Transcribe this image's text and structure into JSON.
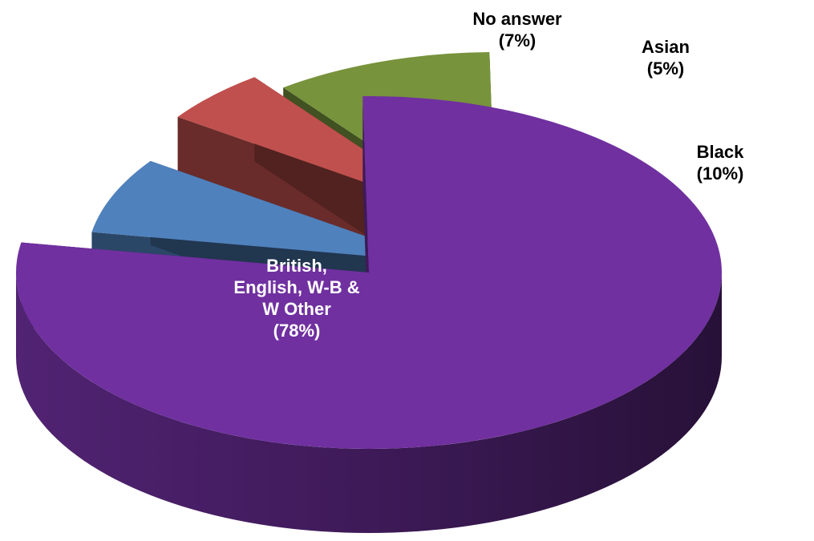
{
  "chart_data": {
    "type": "pie",
    "style": "3d-exploded",
    "slices": [
      {
        "name": "British, English, W-B & W Other",
        "value": 78,
        "label_lines": [
          "British,",
          "English, W-B &",
          "W Other",
          "(78%)"
        ],
        "color": "#7030A0",
        "label_color": "#ffffff"
      },
      {
        "name": "No answer",
        "value": 7,
        "label_lines": [
          "No answer",
          "(7%)"
        ],
        "color": "#4F81BD",
        "label_color": "#000000"
      },
      {
        "name": "Asian",
        "value": 5,
        "label_lines": [
          "Asian",
          "(5%)"
        ],
        "color": "#C0504D",
        "label_color": "#000000"
      },
      {
        "name": "Black",
        "value": 10,
        "label_lines": [
          "Black",
          "(10%)"
        ],
        "color": "#77933C",
        "label_color": "#000000"
      }
    ]
  }
}
